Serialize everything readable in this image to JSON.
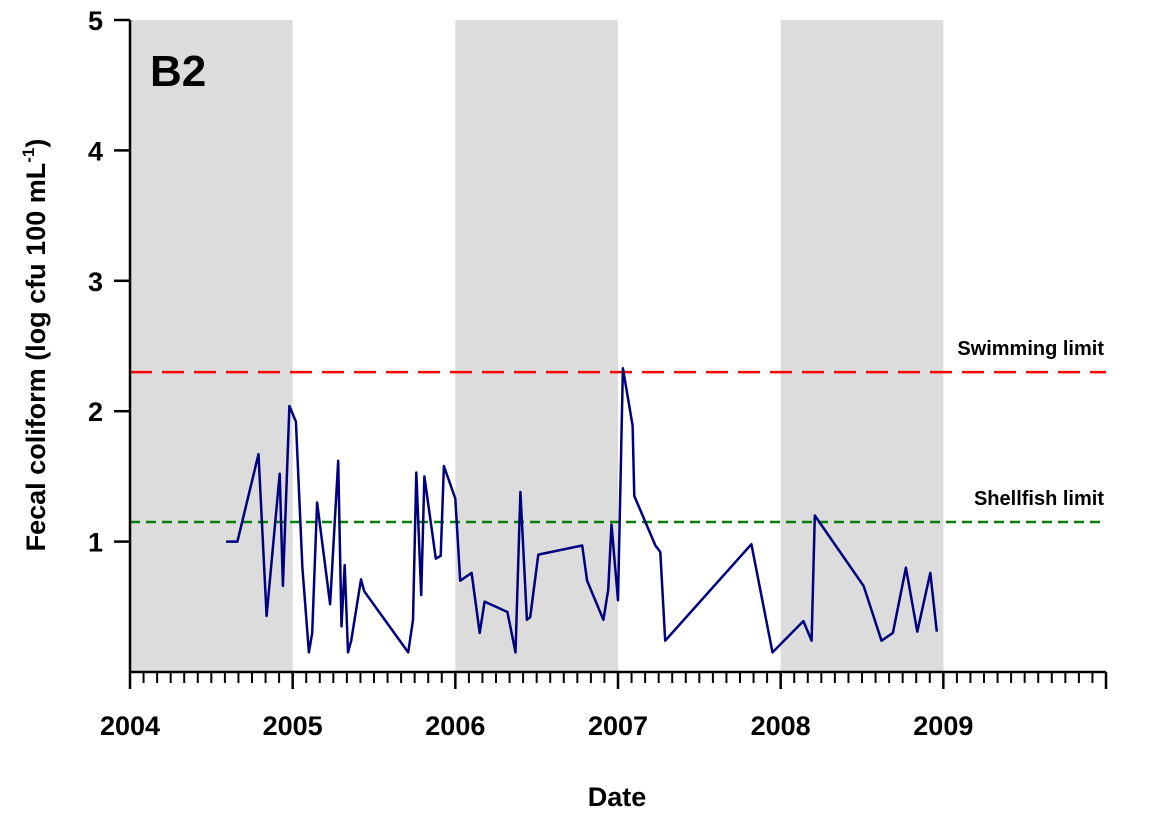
{
  "chart_data": {
    "type": "line",
    "panel_label": "B2",
    "title": "",
    "xlabel": "Date",
    "ylabel": "Fecal coliform (log cfu 100 mL",
    "ylabel_sup": "-1",
    "ylabel_close": ")",
    "xlim": [
      2004.0,
      2010.0
    ],
    "ylim": [
      0,
      5
    ],
    "x_ticks": [
      2004,
      2005,
      2006,
      2007,
      2008,
      2009
    ],
    "x_tick_labels": [
      "2004",
      "2005",
      "2006",
      "2007",
      "2008",
      "2009"
    ],
    "y_ticks": [
      1,
      2,
      3,
      4,
      5
    ],
    "y_tick_labels": [
      "1",
      "2",
      "3",
      "4",
      "5"
    ],
    "grid": false,
    "shaded_year_bands": [
      [
        2004.0,
        2005.0
      ],
      [
        2006.0,
        2007.0
      ],
      [
        2008.0,
        2009.0
      ]
    ],
    "shade_color": "#dcdcdc",
    "line_color": "#00007f",
    "reference_lines": [
      {
        "label": "Swimming limit",
        "y": 2.3,
        "color": "#ff0000",
        "style": "long-dash"
      },
      {
        "label": "Shellfish limit",
        "y": 1.15,
        "color": "#008000",
        "style": "short-dash"
      }
    ],
    "series": [
      {
        "x": [
          2004.59,
          2004.66,
          2004.79,
          2004.84,
          2004.92,
          2004.94,
          2004.98,
          2005.02,
          2005.06,
          2005.1,
          2005.12,
          2005.15,
          2005.23,
          2005.28,
          2005.3,
          2005.32,
          2005.34,
          2005.36,
          2005.42,
          2005.44,
          2005.71,
          2005.74,
          2005.76,
          2005.79,
          2005.81,
          2005.88,
          2005.91,
          2005.93,
          2006.0,
          2006.03,
          2006.1,
          2006.15,
          2006.18,
          2006.32,
          2006.37,
          2006.4,
          2006.44,
          2006.46,
          2006.51,
          2006.78,
          2006.81,
          2006.91,
          2006.94,
          2006.96,
          2007.0,
          2007.03,
          2007.09,
          2007.1,
          2007.23,
          2007.26,
          2007.29,
          2007.82,
          2007.95,
          2008.14,
          2008.19,
          2008.21,
          2008.51,
          2008.62,
          2008.69,
          2008.77,
          2008.84,
          2008.92,
          2008.96
        ],
        "y": [
          1.0,
          1.0,
          1.67,
          0.43,
          1.52,
          0.66,
          2.04,
          1.92,
          0.8,
          0.15,
          0.3,
          1.3,
          0.52,
          1.62,
          0.35,
          0.82,
          0.15,
          0.24,
          0.71,
          0.62,
          0.15,
          0.4,
          1.53,
          0.59,
          1.5,
          0.87,
          0.89,
          1.58,
          1.33,
          0.7,
          0.76,
          0.3,
          0.54,
          0.46,
          0.15,
          1.38,
          0.4,
          0.42,
          0.9,
          0.97,
          0.7,
          0.4,
          0.63,
          1.13,
          0.55,
          2.33,
          1.89,
          1.35,
          0.97,
          0.92,
          0.24,
          0.98,
          0.15,
          0.39,
          0.24,
          1.2,
          0.66,
          0.24,
          0.3,
          0.8,
          0.31,
          0.76,
          0.31
        ]
      }
    ]
  }
}
